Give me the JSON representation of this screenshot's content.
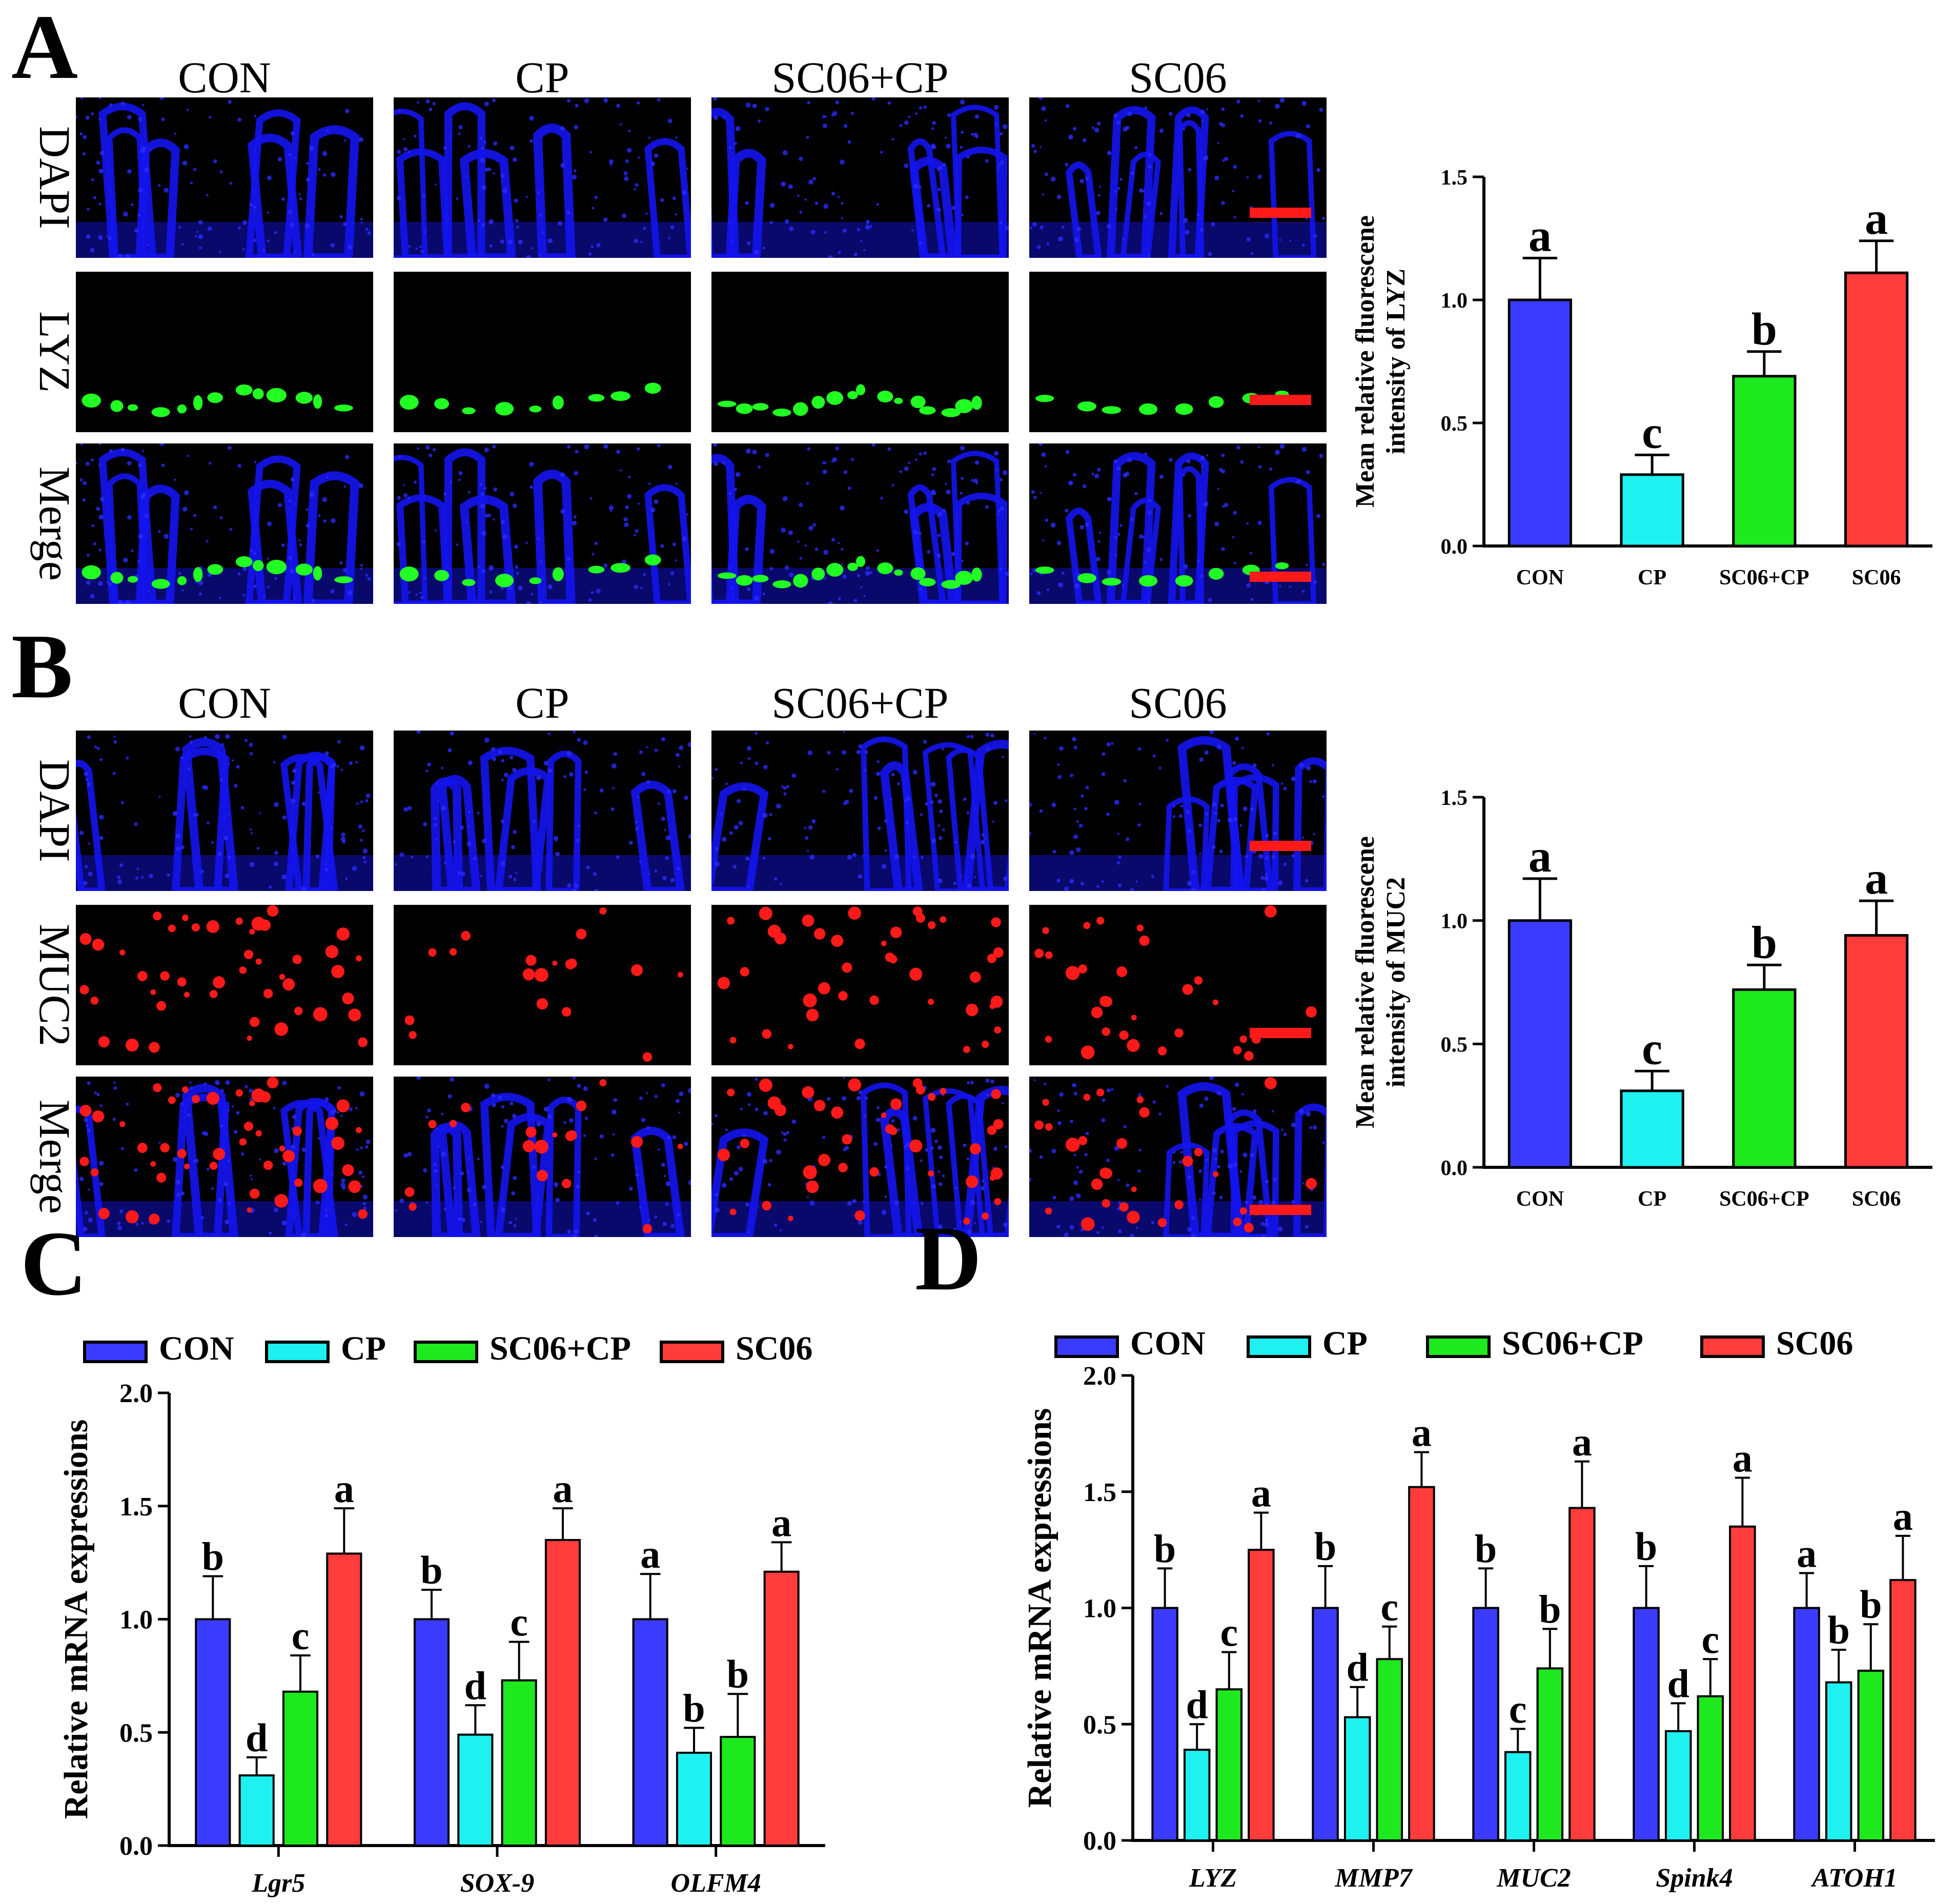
{
  "colors": {
    "CON": "#3b3bff",
    "CP": "#1ff0f0",
    "SC06+CP": "#1ee81e",
    "SC06": "#ff3c3c",
    "dapi": "#1414f0",
    "lyz": "#22ff22",
    "muc2": "#ff1a1a",
    "scalebar": "#ff1a1a"
  },
  "groups": [
    "CON",
    "CP",
    "SC06+CP",
    "SC06"
  ],
  "panelA": {
    "letter": "A",
    "rows": [
      "DAPI",
      "LYZ",
      "Merge"
    ],
    "stain": "LYZ"
  },
  "panelB": {
    "letter": "B",
    "rows": [
      "DAPI",
      "MUC2",
      "Merge"
    ],
    "stain": "MUC2"
  },
  "panelC": {
    "letter": "C"
  },
  "panelD": {
    "letter": "D"
  },
  "chart_data": [
    {
      "id": "A_bar",
      "type": "bar",
      "ylabel": [
        "Mean relative fluorescene",
        "intensity of LYZ"
      ],
      "ylim": [
        0,
        1.5
      ],
      "yticks": [
        0.0,
        0.5,
        1.0,
        1.5
      ],
      "ytick_labels": [
        "0.0",
        "0.5",
        "1.0",
        "1.5"
      ],
      "categories": [
        "CON",
        "CP",
        "SC06+CP",
        "SC06"
      ],
      "values": [
        1.0,
        0.29,
        0.69,
        1.11
      ],
      "errors": [
        0.17,
        0.08,
        0.1,
        0.13
      ],
      "significance": [
        "a",
        "c",
        "b",
        "a"
      ]
    },
    {
      "id": "B_bar",
      "type": "bar",
      "ylabel": [
        "Mean relative fluorescene",
        "intensity of MUC2"
      ],
      "ylim": [
        0,
        1.5
      ],
      "yticks": [
        0.0,
        0.5,
        1.0,
        1.5
      ],
      "ytick_labels": [
        "0.0",
        "0.5",
        "1.0",
        "1.5"
      ],
      "categories": [
        "CON",
        "CP",
        "SC06+CP",
        "SC06"
      ],
      "values": [
        1.0,
        0.31,
        0.72,
        0.94
      ],
      "errors": [
        0.17,
        0.08,
        0.1,
        0.14
      ],
      "significance": [
        "a",
        "c",
        "b",
        "a"
      ]
    },
    {
      "id": "C_bar",
      "type": "bar",
      "ylabel": "Relative mRNA expressions",
      "ylim": [
        0,
        2.0
      ],
      "yticks": [
        0.0,
        0.5,
        1.0,
        1.5,
        2.0
      ],
      "ytick_labels": [
        "0.0",
        "0.5",
        "1.0",
        "1.5",
        "2.0"
      ],
      "legend": [
        "CON",
        "CP",
        "SC06+CP",
        "SC06"
      ],
      "categories": [
        "Lgr5",
        "SOX-9",
        "OLFM4"
      ],
      "series": [
        {
          "name": "CON",
          "values": [
            1.0,
            1.0,
            1.0
          ],
          "errors": [
            0.19,
            0.13,
            0.2
          ],
          "sig": [
            "b",
            "b",
            "a"
          ]
        },
        {
          "name": "CP",
          "values": [
            0.31,
            0.49,
            0.41
          ],
          "errors": [
            0.08,
            0.13,
            0.11
          ],
          "sig": [
            "d",
            "d",
            "b"
          ]
        },
        {
          "name": "SC06+CP",
          "values": [
            0.68,
            0.73,
            0.48
          ],
          "errors": [
            0.16,
            0.17,
            0.19
          ],
          "sig": [
            "c",
            "c",
            "b"
          ]
        },
        {
          "name": "SC06",
          "values": [
            1.29,
            1.35,
            1.21
          ],
          "errors": [
            0.2,
            0.14,
            0.13
          ],
          "sig": [
            "a",
            "a",
            "a"
          ]
        }
      ]
    },
    {
      "id": "D_bar",
      "type": "bar",
      "ylabel": "Relative mRNA expressions",
      "ylim": [
        0,
        2.0
      ],
      "yticks": [
        0.0,
        0.5,
        1.0,
        1.5,
        2.0
      ],
      "ytick_labels": [
        "0.0",
        "0.5",
        "1.0",
        "1.5",
        "2.0"
      ],
      "legend": [
        "CON",
        "CP",
        "SC06+CP",
        "SC06"
      ],
      "categories": [
        "LYZ",
        "MMP7",
        "MUC2",
        "Spink4",
        "ATOH1"
      ],
      "series": [
        {
          "name": "CON",
          "values": [
            1.0,
            1.0,
            1.0,
            1.0,
            1.0
          ],
          "errors": [
            0.17,
            0.18,
            0.17,
            0.18,
            0.15
          ],
          "sig": [
            "b",
            "b",
            "b",
            "b",
            "a"
          ]
        },
        {
          "name": "CP",
          "values": [
            0.39,
            0.53,
            0.38,
            0.47,
            0.68
          ],
          "errors": [
            0.11,
            0.13,
            0.1,
            0.12,
            0.14
          ],
          "sig": [
            "d",
            "d",
            "c",
            "d",
            "b"
          ]
        },
        {
          "name": "SC06+CP",
          "values": [
            0.65,
            0.78,
            0.74,
            0.62,
            0.73
          ],
          "errors": [
            0.16,
            0.14,
            0.17,
            0.16,
            0.2
          ],
          "sig": [
            "c",
            "c",
            "b",
            "c",
            "b"
          ]
        },
        {
          "name": "SC06",
          "values": [
            1.25,
            1.52,
            1.43,
            1.35,
            1.12
          ],
          "errors": [
            0.16,
            0.15,
            0.2,
            0.21,
            0.19
          ],
          "sig": [
            "a",
            "a",
            "a",
            "a",
            "a"
          ]
        }
      ]
    }
  ]
}
